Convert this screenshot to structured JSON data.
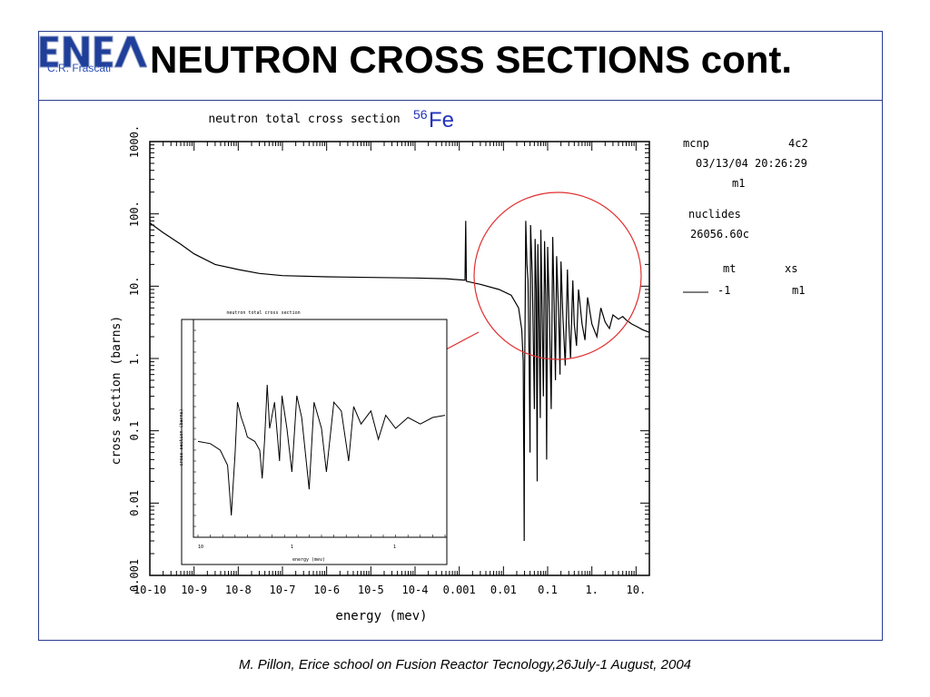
{
  "slide": {
    "title": "NEUTRON CROSS SECTIONS cont.",
    "logo_text": "ENEA",
    "logo_subtitle": "C.R. Frascati",
    "isotope_mass": "56",
    "isotope_symbol": "Fe",
    "footer": "M. Pillon, Erice school on Fusion Reactor Tecnology,26July-1 August, 2004",
    "colors": {
      "frame": "#2a3d8f",
      "isotope": "#2233bb",
      "highlight": "#e03030",
      "logo": "#1f3f9a"
    }
  },
  "chart_data": [
    {
      "type": "line",
      "title": "neutron total cross section",
      "xlabel": "energy (mev)",
      "ylabel": "cross section (barns)",
      "xscale": "log",
      "yscale": "log",
      "xlim": [
        1e-10,
        20
      ],
      "ylim": [
        0.001,
        1000
      ],
      "x_tick_labels": [
        "10-10",
        "10-9",
        "10-8",
        "10-7",
        "10-6",
        "10-5",
        "10-4",
        "0.001",
        "0.01",
        "0.1",
        "1.",
        "10."
      ],
      "x_tick_values": [
        1e-10,
        1e-09,
        1e-08,
        1e-07,
        1e-06,
        1e-05,
        0.0001,
        0.001,
        0.01,
        0.1,
        1,
        10
      ],
      "y_tick_labels": [
        "0.001",
        "0.01",
        "0.1",
        "1.",
        "10.",
        "100.",
        "1000."
      ],
      "y_tick_values": [
        0.001,
        0.01,
        0.1,
        1,
        10,
        100,
        1000
      ],
      "series": [
        {
          "points": [
            [
              1e-10,
              75
            ],
            [
              2e-10,
              55
            ],
            [
              5e-10,
              38
            ],
            [
              1e-09,
              28
            ],
            [
              3e-09,
              20
            ],
            [
              1e-08,
              17
            ],
            [
              3e-08,
              15
            ],
            [
              1e-07,
              14
            ],
            [
              1e-06,
              13.5
            ],
            [
              1e-05,
              13.2
            ],
            [
              0.0001,
              13
            ],
            [
              0.0005,
              12.7
            ],
            [
              0.0012,
              12.2
            ],
            [
              0.00135,
              12.1
            ],
            [
              0.0014,
              80
            ],
            [
              0.00145,
              11.7
            ],
            [
              0.003,
              10.6
            ],
            [
              0.008,
              9
            ],
            [
              0.015,
              7.5
            ],
            [
              0.022,
              5
            ],
            [
              0.026,
              2.5
            ],
            [
              0.028,
              0.9
            ],
            [
              0.0285,
              0.1
            ],
            [
              0.029,
              0.04
            ],
            [
              0.0295,
              0.003
            ],
            [
              0.03,
              0.5
            ],
            [
              0.031,
              6
            ],
            [
              0.032,
              80
            ],
            [
              0.034,
              20
            ],
            [
              0.036,
              12
            ],
            [
              0.038,
              1
            ],
            [
              0.04,
              0.05
            ],
            [
              0.041,
              70
            ],
            [
              0.045,
              14
            ],
            [
              0.05,
              0.2
            ],
            [
              0.052,
              45
            ],
            [
              0.055,
              9
            ],
            [
              0.058,
              0.02
            ],
            [
              0.06,
              38
            ],
            [
              0.063,
              7
            ],
            [
              0.068,
              0.15
            ],
            [
              0.07,
              60
            ],
            [
              0.075,
              5
            ],
            [
              0.08,
              0.3
            ],
            [
              0.085,
              42
            ],
            [
              0.09,
              8
            ],
            [
              0.095,
              0.04
            ],
            [
              0.1,
              35
            ],
            [
              0.11,
              4
            ],
            [
              0.12,
              0.2
            ],
            [
              0.13,
              48
            ],
            [
              0.14,
              6
            ],
            [
              0.15,
              0.5
            ],
            [
              0.16,
              26
            ],
            [
              0.18,
              3
            ],
            [
              0.19,
              0.6
            ],
            [
              0.2,
              22
            ],
            [
              0.22,
              4
            ],
            [
              0.25,
              0.8
            ],
            [
              0.28,
              17
            ],
            [
              0.3,
              3.5
            ],
            [
              0.33,
              1
            ],
            [
              0.37,
              12
            ],
            [
              0.4,
              3
            ],
            [
              0.45,
              1.5
            ],
            [
              0.5,
              9
            ],
            [
              0.6,
              3
            ],
            [
              0.7,
              1.8
            ],
            [
              0.8,
              7
            ],
            [
              1,
              3
            ],
            [
              1.3,
              2
            ],
            [
              1.6,
              5
            ],
            [
              2,
              3.2
            ],
            [
              2.5,
              2.6
            ],
            [
              3,
              4
            ],
            [
              4,
              3.5
            ],
            [
              5,
              3.8
            ],
            [
              6,
              3.4
            ],
            [
              8,
              3
            ],
            [
              10,
              2.8
            ],
            [
              14,
              2.5
            ],
            [
              20,
              2.3
            ]
          ]
        }
      ],
      "annotations": {
        "code": "mcnp",
        "version": "4c2",
        "date": "03/13/04 20:26:29",
        "material": "m1",
        "nuclides_label": "nuclides",
        "nuclide": "26056.60c",
        "mt_label": "mt",
        "xs_label": "xs",
        "mt_value": "-1",
        "xs_value": "m1"
      }
    },
    {
      "type": "line",
      "title": "neutron total cross section",
      "xlabel": "energy (mev)",
      "ylabel": "cross section (barns)",
      "note": "magnified view of resonance region",
      "series": [
        {
          "points": [
            [
              0,
              0.44
            ],
            [
              0.05,
              0.43
            ],
            [
              0.09,
              0.4
            ],
            [
              0.12,
              0.33
            ],
            [
              0.135,
              0.1
            ],
            [
              0.14,
              0.2
            ],
            [
              0.15,
              0.38
            ],
            [
              0.16,
              0.62
            ],
            [
              0.175,
              0.55
            ],
            [
              0.19,
              0.5
            ],
            [
              0.2,
              0.46
            ],
            [
              0.23,
              0.44
            ],
            [
              0.25,
              0.4
            ],
            [
              0.26,
              0.27
            ],
            [
              0.27,
              0.45
            ],
            [
              0.28,
              0.7
            ],
            [
              0.29,
              0.5
            ],
            [
              0.31,
              0.62
            ],
            [
              0.33,
              0.35
            ],
            [
              0.34,
              0.65
            ],
            [
              0.36,
              0.5
            ],
            [
              0.38,
              0.3
            ],
            [
              0.4,
              0.65
            ],
            [
              0.42,
              0.55
            ],
            [
              0.45,
              0.22
            ],
            [
              0.47,
              0.62
            ],
            [
              0.5,
              0.5
            ],
            [
              0.52,
              0.3
            ],
            [
              0.55,
              0.62
            ],
            [
              0.58,
              0.58
            ],
            [
              0.61,
              0.35
            ],
            [
              0.63,
              0.6
            ],
            [
              0.66,
              0.52
            ],
            [
              0.7,
              0.58
            ],
            [
              0.73,
              0.45
            ],
            [
              0.76,
              0.56
            ],
            [
              0.8,
              0.5
            ],
            [
              0.85,
              0.55
            ],
            [
              0.9,
              0.52
            ],
            [
              0.95,
              0.55
            ],
            [
              1,
              0.56
            ]
          ]
        }
      ],
      "tick_labels": [
        "10",
        "1",
        "1"
      ]
    }
  ]
}
